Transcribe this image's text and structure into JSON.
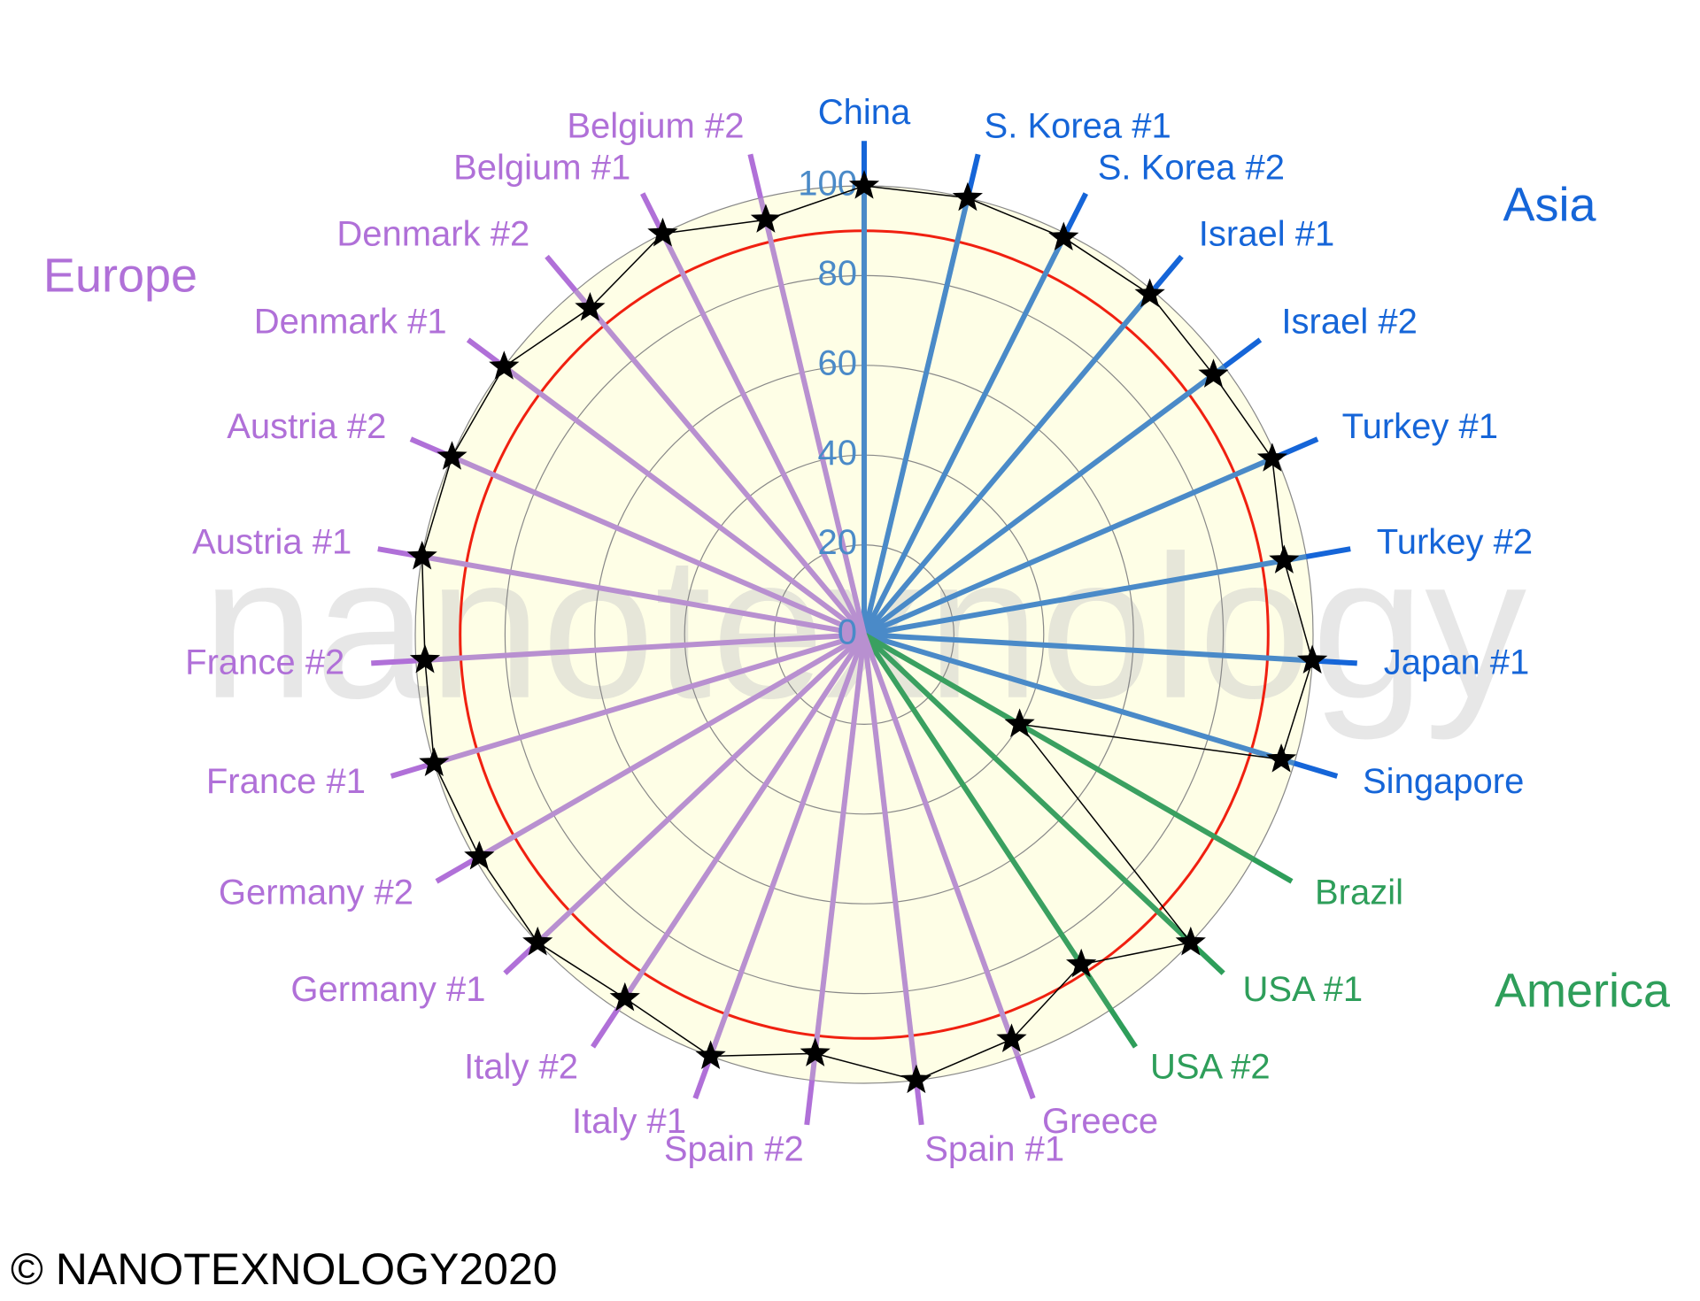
{
  "chart_data": {
    "type": "radar",
    "categories": [
      "China",
      "S. Korea #1",
      "S. Korea #2",
      "Israel #1",
      "Israel #2",
      "Turkey #1",
      "Turkey #2",
      "Japan #1",
      "Singapore",
      "Brazil",
      "USA #1",
      "USA #2",
      "Greece",
      "Spain #1",
      "Spain #2",
      "Italy #1",
      "Italy #2",
      "Germany #1",
      "Germany #2",
      "France #1",
      "France #2",
      "Austria #1",
      "Austria #2",
      "Denmark #1",
      "Denmark #2",
      "Belgium #1",
      "Belgium #2"
    ],
    "values": [
      100,
      100,
      99,
      99,
      97,
      99,
      95,
      100,
      97,
      40,
      100,
      88,
      96,
      100,
      94,
      100,
      97,
      100,
      99,
      100,
      98,
      100,
      100,
      100,
      95,
      100,
      95
    ],
    "label_colors": [
      "#1565d8",
      "#1565d8",
      "#1565d8",
      "#1565d8",
      "#1565d8",
      "#1565d8",
      "#1565d8",
      "#1565d8",
      "#1565d8",
      "#2e9e5a",
      "#2e9e5a",
      "#2e9e5a",
      "#b070d8",
      "#b070d8",
      "#b070d8",
      "#b070d8",
      "#b070d8",
      "#b070d8",
      "#b070d8",
      "#b070d8",
      "#b070d8",
      "#b070d8",
      "#b070d8",
      "#b070d8",
      "#b070d8",
      "#b070d8",
      "#b070d8"
    ],
    "spoke_colors": [
      "#4a8ac8",
      "#4a8ac8",
      "#4a8ac8",
      "#4a8ac8",
      "#4a8ac8",
      "#4a8ac8",
      "#4a8ac8",
      "#4a8ac8",
      "#4a8ac8",
      "#3aa060",
      "#3aa060",
      "#3aa060",
      "#b890d0",
      "#b890d0",
      "#b890d0",
      "#b890d0",
      "#b890d0",
      "#b890d0",
      "#b890d0",
      "#b890d0",
      "#b890d0",
      "#b890d0",
      "#b890d0",
      "#b890d0",
      "#b890d0",
      "#b890d0",
      "#b890d0"
    ],
    "ylim": [
      0,
      110
    ],
    "yticks": [
      0,
      20,
      40,
      60,
      80,
      100
    ],
    "reference_value": 90,
    "groups": [
      {
        "name": "Asia",
        "color": "#1565d8"
      },
      {
        "name": "Europe",
        "color": "#b070d8"
      },
      {
        "name": "America",
        "color": "#2e9e5a"
      }
    ],
    "watermark": "nanotexnology",
    "footer": "© NANOTEXNOLOGY2020"
  }
}
